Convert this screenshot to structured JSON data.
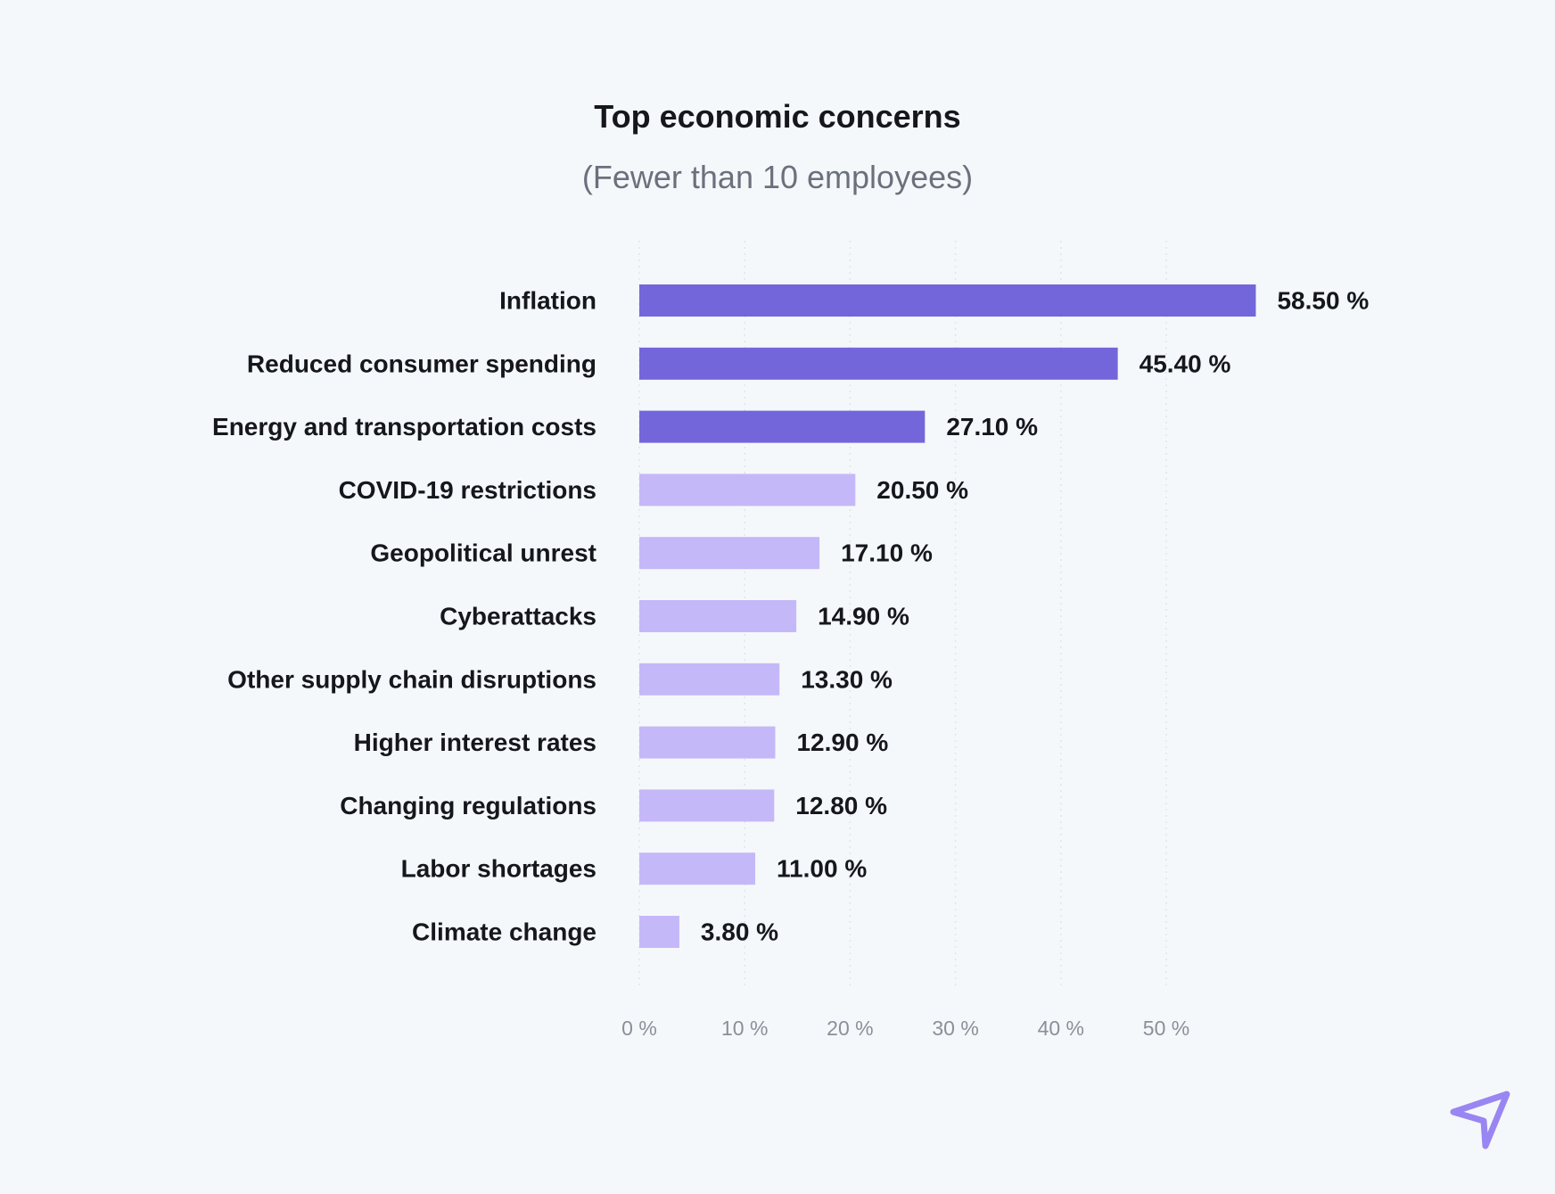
{
  "chart_data": {
    "type": "bar",
    "orientation": "horizontal",
    "title": "Top economic concerns",
    "subtitle": "(Fewer than 10 employees)",
    "categories": [
      "Inflation",
      "Reduced consumer spending",
      "Energy and transportation costs",
      "COVID-19 restrictions",
      "Geopolitical unrest",
      "Cyberattacks",
      "Other supply chain disruptions",
      "Higher interest rates",
      "Changing regulations",
      "Labor shortages",
      "Climate change"
    ],
    "values": [
      58.5,
      45.4,
      27.1,
      20.5,
      17.1,
      14.9,
      13.3,
      12.9,
      12.8,
      11.0,
      3.8
    ],
    "value_labels": [
      "58.50 %",
      "45.40 %",
      "27.10 %",
      "20.50 %",
      "17.10 %",
      "14.90 %",
      "13.30 %",
      "12.90 %",
      "12.80 %",
      "11.00 %",
      "3.80 %"
    ],
    "highlight_count": 3,
    "x_ticks": [
      0,
      10,
      20,
      30,
      40,
      50
    ],
    "x_tick_labels": [
      "0 %",
      "10 %",
      "20 %",
      "30 %",
      "40 %",
      "50 %"
    ],
    "xlim": [
      0,
      58.5
    ],
    "xlabel": "",
    "ylabel": "",
    "grid": "vertical-dotted",
    "legend": "none",
    "colors": {
      "highlight": "#7366db",
      "normal": "#c5b8f8",
      "grid": "#e1e4ea",
      "text": "#16161d",
      "subtitle": "#6b717c",
      "tick": "#8a9099",
      "logo": "#9a86f2"
    }
  },
  "logo": {
    "icon": "paper-plane-icon"
  }
}
